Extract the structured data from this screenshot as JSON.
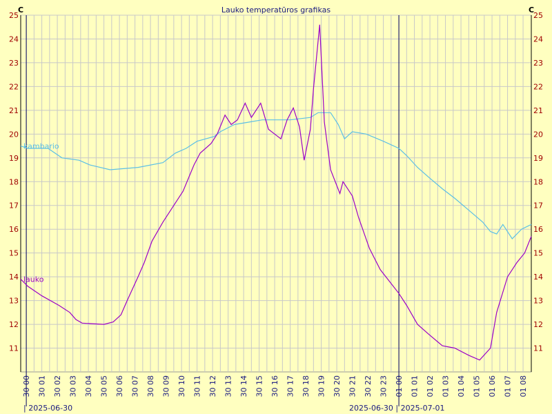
{
  "chart_data": {
    "type": "line",
    "title": "Lauko temperatūros grafikas",
    "y_unit_left": "C",
    "y_unit_right": "C",
    "annotations": [
      "| 2025-06-30",
      "2025-06-30 | 2025-07-01"
    ],
    "day_lines": [
      0,
      24
    ],
    "xlim": [
      -0.36,
      32.53
    ],
    "xticks": [
      {
        "value": 0,
        "label": "30 00"
      },
      {
        "value": 1,
        "label": "30 01"
      },
      {
        "value": 2,
        "label": "30 02"
      },
      {
        "value": 3,
        "label": "30 03"
      },
      {
        "value": 4,
        "label": "30 04"
      },
      {
        "value": 5,
        "label": "30 05"
      },
      {
        "value": 6,
        "label": "30 06"
      },
      {
        "value": 7,
        "label": "30 07"
      },
      {
        "value": 8,
        "label": "30 08"
      },
      {
        "value": 9,
        "label": "30 09"
      },
      {
        "value": 10,
        "label": "30 10"
      },
      {
        "value": 11,
        "label": "30 11"
      },
      {
        "value": 12,
        "label": "30 12"
      },
      {
        "value": 13,
        "label": "30 13"
      },
      {
        "value": 14,
        "label": "30 14"
      },
      {
        "value": 15,
        "label": "30 15"
      },
      {
        "value": 16,
        "label": "30 16"
      },
      {
        "value": 17,
        "label": "30 17"
      },
      {
        "value": 18,
        "label": "30 18"
      },
      {
        "value": 19,
        "label": "30 19"
      },
      {
        "value": 20,
        "label": "30 20"
      },
      {
        "value": 21,
        "label": "30 21"
      },
      {
        "value": 22,
        "label": "30 22"
      },
      {
        "value": 23,
        "label": "30 23"
      },
      {
        "value": 24,
        "label": "01 00"
      },
      {
        "value": 25,
        "label": "01 01"
      },
      {
        "value": 26,
        "label": "01 02"
      },
      {
        "value": 27,
        "label": "01 03"
      },
      {
        "value": 28,
        "label": "01 04"
      },
      {
        "value": 29,
        "label": "01 05"
      },
      {
        "value": 30,
        "label": "01 06"
      },
      {
        "value": 31,
        "label": "01 07"
      },
      {
        "value": 32,
        "label": "01 08"
      }
    ],
    "ylim": [
      10,
      25
    ],
    "yticks": [
      11,
      12,
      13,
      14,
      15,
      16,
      17,
      18,
      19,
      20,
      21,
      22,
      23,
      24,
      25
    ],
    "grid": true,
    "series": [
      {
        "name": "kambario",
        "color": "#5bbfe6",
        "x": [
          -0.36,
          0.1,
          1.4,
          2.3,
          3.4,
          4.1,
          5.4,
          7.2,
          8.8,
          9.6,
          10.3,
          11.0,
          12.1,
          12.5,
          13.4,
          14.3,
          15.2,
          17.0,
          18.3,
          18.8,
          19.6,
          20.1,
          20.5,
          21.0,
          21.9,
          23.0,
          24.0,
          24.5,
          25.2,
          25.9,
          26.8,
          27.6,
          28.5,
          29.4,
          29.9,
          30.3,
          30.7,
          31.3,
          31.9,
          32.53
        ],
        "values": [
          19.5,
          19.4,
          19.4,
          19.0,
          18.9,
          18.7,
          18.5,
          18.6,
          18.8,
          19.2,
          19.4,
          19.7,
          19.9,
          20.1,
          20.4,
          20.5,
          20.6,
          20.6,
          20.7,
          20.9,
          20.9,
          20.4,
          19.8,
          20.1,
          20.0,
          19.7,
          19.4,
          19.1,
          18.6,
          18.2,
          17.7,
          17.3,
          16.8,
          16.3,
          15.9,
          15.8,
          16.2,
          15.6,
          16.0,
          16.2
        ]
      },
      {
        "name": "lauko",
        "color": "#9a00c8",
        "x": [
          -0.36,
          0.1,
          1.0,
          2.1,
          2.8,
          3.2,
          3.6,
          5.0,
          5.6,
          6.1,
          6.5,
          7.2,
          7.6,
          8.1,
          8.8,
          9.4,
          10.1,
          10.8,
          11.2,
          11.9,
          12.3,
          12.8,
          13.2,
          13.6,
          14.1,
          14.5,
          15.1,
          15.6,
          16.0,
          16.4,
          16.8,
          17.2,
          17.6,
          17.9,
          18.3,
          18.5,
          18.9,
          19.2,
          19.6,
          20.2,
          20.4,
          21.0,
          21.4,
          22.1,
          22.8,
          23.4,
          24.0,
          24.5,
          25.2,
          25.9,
          26.8,
          27.6,
          28.5,
          29.2,
          29.9,
          30.3,
          31.0,
          31.6,
          32.1,
          32.53
        ],
        "values": [
          13.9,
          13.6,
          13.2,
          12.8,
          12.5,
          12.2,
          12.05,
          12.0,
          12.1,
          12.4,
          13.0,
          14.0,
          14.6,
          15.5,
          16.3,
          16.9,
          17.6,
          18.7,
          19.2,
          19.6,
          20.0,
          20.8,
          20.4,
          20.6,
          21.3,
          20.7,
          21.3,
          20.2,
          20.0,
          19.8,
          20.6,
          21.1,
          20.3,
          18.9,
          20.2,
          21.9,
          24.6,
          20.5,
          18.5,
          17.5,
          18.0,
          17.4,
          16.5,
          15.2,
          14.3,
          13.8,
          13.3,
          12.8,
          12.0,
          11.6,
          11.1,
          11.0,
          10.7,
          10.5,
          11.0,
          12.5,
          14.0,
          14.6,
          15.0,
          15.7
        ]
      }
    ]
  }
}
